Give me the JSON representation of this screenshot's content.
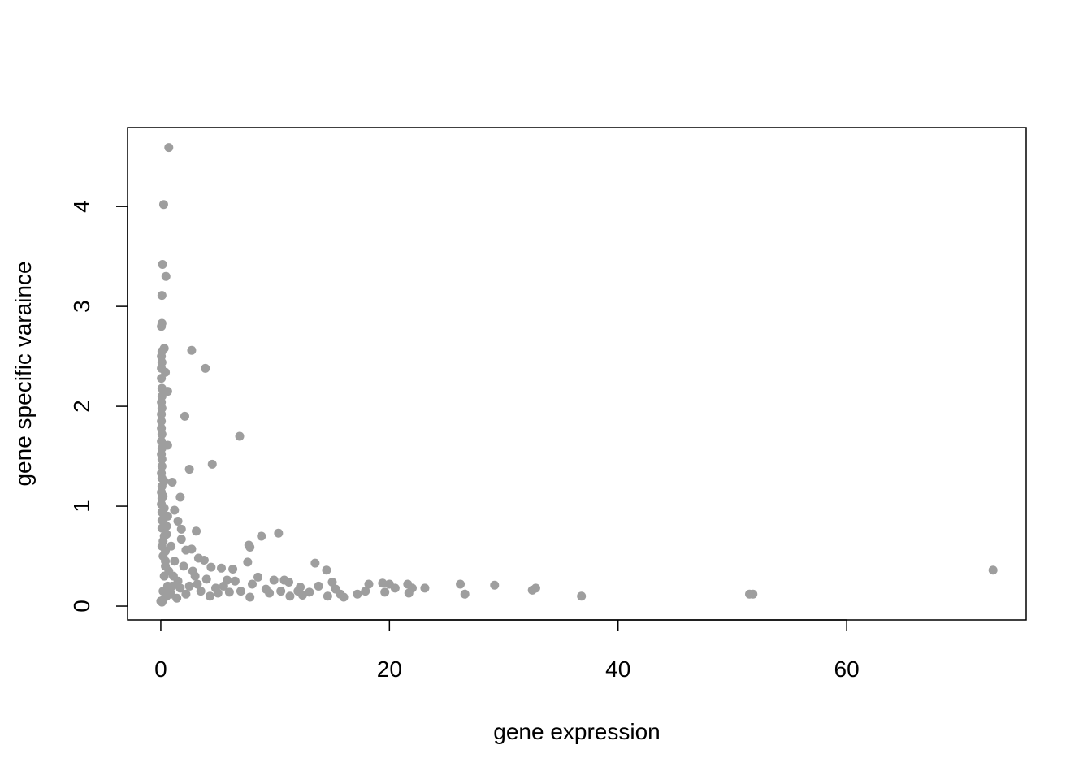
{
  "chart_data": {
    "type": "scatter",
    "xlabel": "gene expression",
    "ylabel": "gene specific varaince",
    "color": "#9e9e9e",
    "xlim": [
      -2.91,
      75.7
    ],
    "ylim": [
      -0.138,
      4.79
    ],
    "xticks": [
      0,
      20,
      40,
      60
    ],
    "yticks": [
      0,
      1,
      2,
      3,
      4
    ],
    "x": [
      0.7,
      0.25,
      0.15,
      0.45,
      0.1,
      0.1,
      0.05,
      2.7,
      0.3,
      0.1,
      0.05,
      0.1,
      0.05,
      3.9,
      0.4,
      0.05,
      0.1,
      0.6,
      0.1,
      0.05,
      0.1,
      0.05,
      2.1,
      0.05,
      0.05,
      0.1,
      6.9,
      0.05,
      0.6,
      0.1,
      0.05,
      0.1,
      4.5,
      0.1,
      2.5,
      0.05,
      0.1,
      0.3,
      1.0,
      0.1,
      0.05,
      1.7,
      0.1,
      0.05,
      0.3,
      1.2,
      0.1,
      0.6,
      0.1,
      1.5,
      0.3,
      1.8,
      3.1,
      10.3,
      8.8,
      0.1,
      0.5,
      1.8,
      7.7,
      7.8,
      2.7,
      2.2,
      0.2,
      0.9,
      0.4,
      3.3,
      3.8,
      7.6,
      13.5,
      5.3,
      4.4,
      6.3,
      14.5,
      72.8,
      0.2,
      1.2,
      2.0,
      8.5,
      5.8,
      9.9,
      10.8,
      11.2,
      15.0,
      18.2,
      19.4,
      20.0,
      21.6,
      26.2,
      29.2,
      13.8,
      12.2,
      20.5,
      22.0,
      23.1,
      32.8,
      32.5,
      15.3,
      9.2,
      7.0,
      17.9,
      19.6,
      21.7,
      13.0,
      26.6,
      51.5,
      51.8,
      17.2,
      15.7,
      14.6,
      11.3,
      12.4,
      36.8,
      16.0,
      7.8,
      4.3,
      1.4,
      0.0,
      0.1,
      0.2,
      0.5,
      0.8,
      1.0,
      0.3,
      0.7,
      1.5,
      2.5,
      3.5,
      4.8,
      5.5,
      6.5,
      6.0,
      8.0,
      9.5,
      10.5,
      3.0,
      2.2,
      1.1,
      0.4,
      0.6,
      0.2,
      0.9,
      4.0,
      5.0,
      3.2,
      1.7,
      2.8,
      0.3,
      0.5,
      0.1,
      0.2,
      0.4,
      12.0
    ],
    "values": [
      4.59,
      4.02,
      3.42,
      3.3,
      3.11,
      2.83,
      2.8,
      2.56,
      2.58,
      2.55,
      2.5,
      2.44,
      2.38,
      2.38,
      2.34,
      2.28,
      2.18,
      2.15,
      2.1,
      2.04,
      1.98,
      1.92,
      1.9,
      1.85,
      1.78,
      1.72,
      1.7,
      1.65,
      1.61,
      1.58,
      1.52,
      1.47,
      1.42,
      1.4,
      1.37,
      1.33,
      1.28,
      1.25,
      1.24,
      1.2,
      1.14,
      1.09,
      1.08,
      1.02,
      0.98,
      0.96,
      0.94,
      0.9,
      0.86,
      0.85,
      0.82,
      0.77,
      0.75,
      0.73,
      0.7,
      0.78,
      0.72,
      0.67,
      0.61,
      0.59,
      0.57,
      0.56,
      0.65,
      0.6,
      0.55,
      0.48,
      0.46,
      0.44,
      0.43,
      0.38,
      0.39,
      0.37,
      0.36,
      0.36,
      0.5,
      0.45,
      0.4,
      0.29,
      0.26,
      0.26,
      0.26,
      0.24,
      0.24,
      0.22,
      0.23,
      0.22,
      0.22,
      0.22,
      0.21,
      0.2,
      0.19,
      0.18,
      0.18,
      0.18,
      0.18,
      0.16,
      0.17,
      0.17,
      0.15,
      0.15,
      0.14,
      0.13,
      0.14,
      0.12,
      0.12,
      0.12,
      0.12,
      0.12,
      0.1,
      0.1,
      0.11,
      0.1,
      0.09,
      0.09,
      0.1,
      0.08,
      0.05,
      0.04,
      0.06,
      0.1,
      0.15,
      0.2,
      0.3,
      0.35,
      0.25,
      0.2,
      0.15,
      0.18,
      0.2,
      0.25,
      0.14,
      0.22,
      0.13,
      0.15,
      0.3,
      0.12,
      0.3,
      0.4,
      0.2,
      0.15,
      0.12,
      0.27,
      0.13,
      0.22,
      0.18,
      0.35,
      0.7,
      0.8,
      0.6,
      1.1,
      0.45,
      0.15
    ]
  }
}
